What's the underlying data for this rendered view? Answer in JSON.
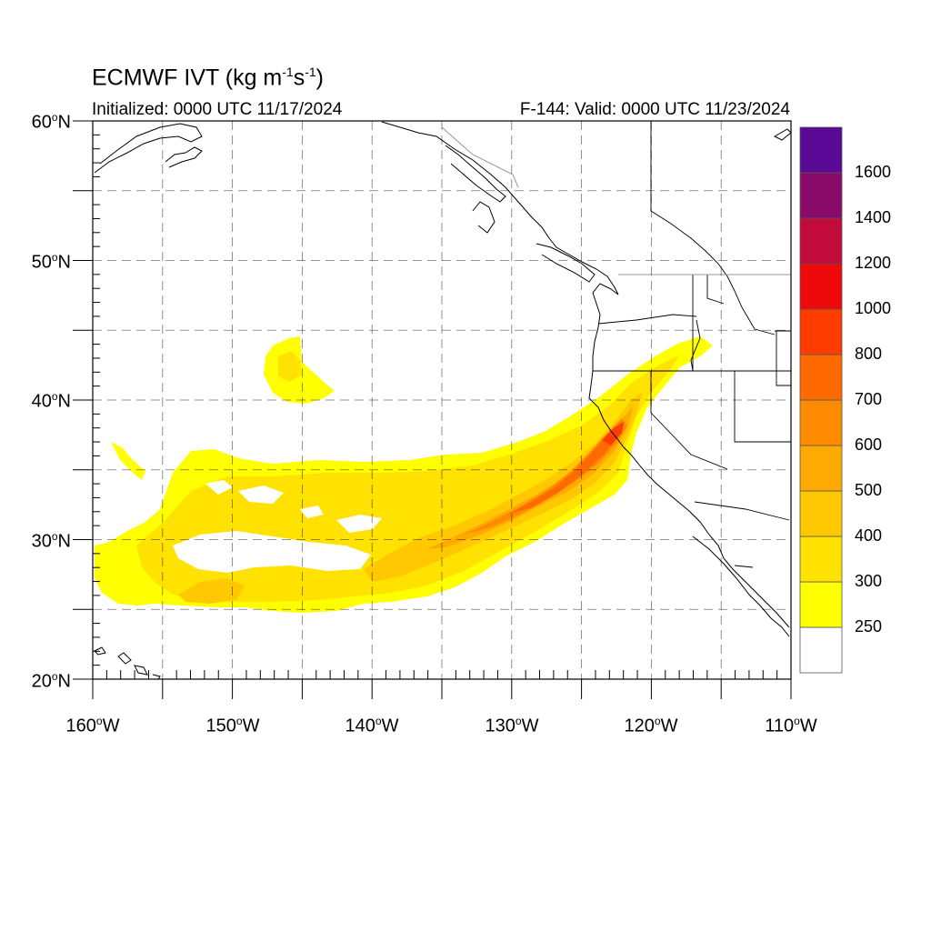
{
  "header": {
    "title_main": "ECMWF IVT (kg m",
    "title_exp1": "-1",
    "title_mid": "s",
    "title_exp2": "-1",
    "title_end": ")",
    "initialized": "Initialized: 0000 UTC 11/17/2024",
    "valid": "F-144: Valid: 0000 UTC 11/23/2024"
  },
  "axes": {
    "lat_ticks": [
      {
        "deg": "60",
        "hemi": "N"
      },
      {
        "deg": "50",
        "hemi": "N"
      },
      {
        "deg": "40",
        "hemi": "N"
      },
      {
        "deg": "30",
        "hemi": "N"
      },
      {
        "deg": "20",
        "hemi": "N"
      }
    ],
    "lon_ticks": [
      {
        "deg": "160",
        "hemi": "W"
      },
      {
        "deg": "150",
        "hemi": "W"
      },
      {
        "deg": "140",
        "hemi": "W"
      },
      {
        "deg": "130",
        "hemi": "W"
      },
      {
        "deg": "120",
        "hemi": "W"
      },
      {
        "deg": "110",
        "hemi": "W"
      }
    ],
    "lat_range": [
      20,
      60
    ],
    "lon_range": [
      -160,
      -110
    ]
  },
  "colorbar": {
    "labels": [
      "250",
      "300",
      "400",
      "500",
      "600",
      "700",
      "800",
      "1000",
      "1200",
      "1400",
      "1600"
    ],
    "colors": [
      "#ffffff",
      "#ffff00",
      "#ffe200",
      "#ffc800",
      "#ffaa00",
      "#ff8c00",
      "#ff6a00",
      "#ff3c00",
      "#ee0a0a",
      "#c20a3c",
      "#8a0a6a",
      "#5a0a96"
    ]
  }
}
